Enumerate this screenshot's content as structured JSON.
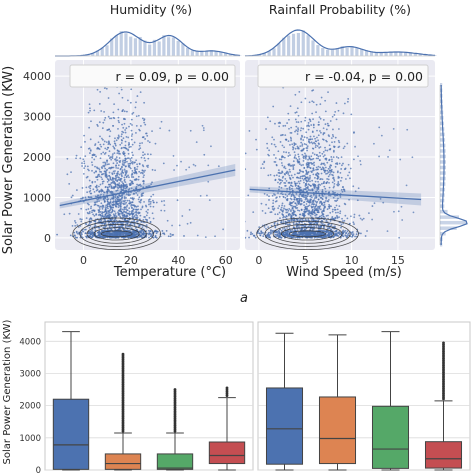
{
  "figure": {
    "panel_label": "a",
    "accent_color": "#4c72b0",
    "box_colors": [
      "#4c72b0",
      "#dd8452",
      "#55a868",
      "#c44e52"
    ]
  },
  "chart_data": [
    {
      "type": "scatter",
      "title": "Humidity (%)",
      "xlabel": "Temperature (°C)",
      "ylabel": "Solar Power Generation (KW)",
      "xlim": [
        -12,
        66
      ],
      "ylim": [
        -300,
        4400
      ],
      "xticks": [
        "0",
        "20",
        "40",
        "60"
      ],
      "yticks": [
        "0",
        "1000",
        "2000",
        "3000",
        "4000"
      ],
      "annotation": "r = 0.09, p = 0.00",
      "regression": {
        "x": [
          -10,
          64
        ],
        "y": [
          800,
          1680
        ]
      },
      "point_cloud_summary": {
        "x_range": [
          -2,
          30
        ],
        "y_range": [
          0,
          4200
        ]
      },
      "grid": true,
      "marginal": "kde-histogram (top)"
    },
    {
      "type": "scatter",
      "title": "Rainfall Probability (%)",
      "xlabel": "Wind Speed (m/s)",
      "xlim": [
        -1.5,
        19
      ],
      "ylim": [
        -300,
        4400
      ],
      "xticks": [
        "0",
        "5",
        "10",
        "15"
      ],
      "yticks": [
        "0",
        "1000",
        "2000",
        "3000",
        "4000"
      ],
      "annotation": "r = -0.04, p = 0.00",
      "regression": {
        "x": [
          -1,
          17.5
        ],
        "y": [
          1200,
          950
        ]
      },
      "point_cloud_summary": {
        "x_range": [
          0.5,
          10
        ],
        "y_range": [
          0,
          4000
        ]
      },
      "grid": true,
      "marginal": "kde-histogram (top and right)"
    },
    {
      "type": "box",
      "ylabel": "Solar Power Generation (KW)",
      "ylim": [
        0,
        4600
      ],
      "yticks": [
        "0",
        "1000",
        "2000",
        "3000",
        "4000"
      ],
      "boxes": [
        {
          "q1": 20,
          "median": 780,
          "q3": 2200,
          "whislo": 0,
          "whishi": 4300
        },
        {
          "q1": 20,
          "median": 200,
          "q3": 500,
          "whislo": 0,
          "whishi": 1150,
          "outliers_max": 3600
        },
        {
          "q1": 20,
          "median": 60,
          "q3": 500,
          "whislo": 0,
          "whishi": 1150,
          "outliers_max": 2500
        },
        {
          "q1": 200,
          "median": 450,
          "q3": 870,
          "whislo": 0,
          "whishi": 2250,
          "outliers_max": 2550
        }
      ]
    },
    {
      "type": "box",
      "ylim": [
        0,
        4600
      ],
      "boxes": [
        {
          "q1": 180,
          "median": 1280,
          "q3": 2550,
          "whislo": 0,
          "whishi": 4250
        },
        {
          "q1": 200,
          "median": 980,
          "q3": 2270,
          "whislo": 0,
          "whishi": 4200
        },
        {
          "q1": 50,
          "median": 650,
          "q3": 1980,
          "whislo": 0,
          "whishi": 4300
        },
        {
          "q1": 60,
          "median": 350,
          "q3": 880,
          "whislo": 0,
          "whishi": 2150,
          "outliers_max": 3950
        }
      ]
    }
  ]
}
